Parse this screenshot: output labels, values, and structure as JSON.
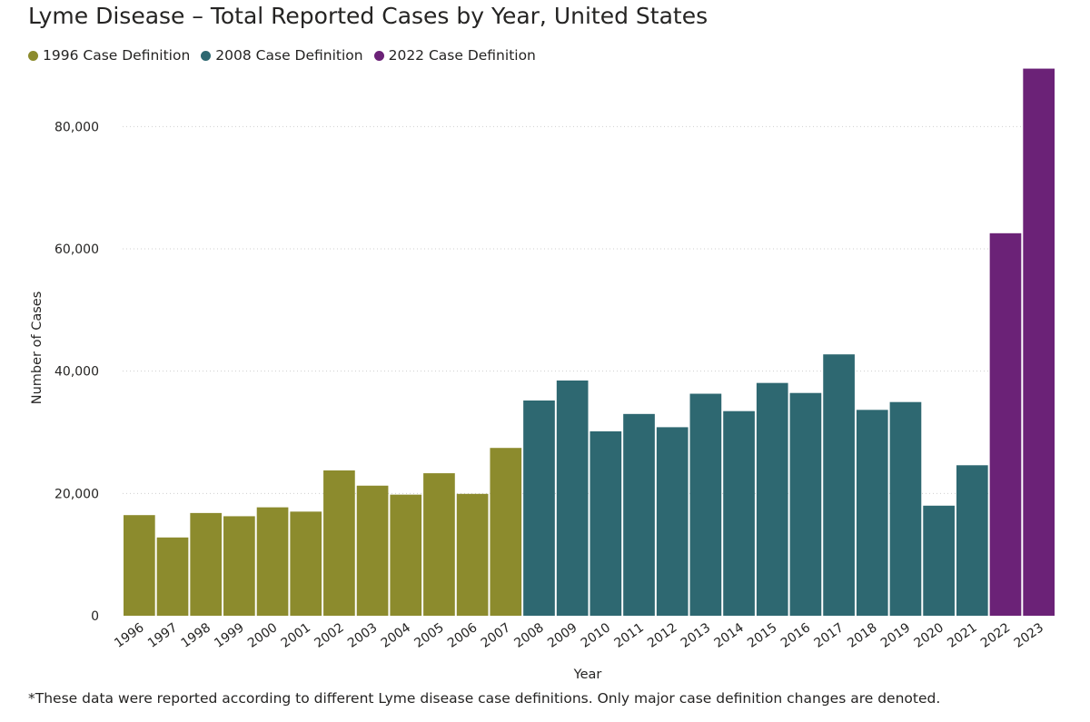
{
  "chart_data": {
    "type": "bar",
    "title": "Lyme Disease – Total Reported Cases by Year, United States",
    "xlabel": "Year",
    "ylabel": "Number of Cases",
    "ylim": [
      0,
      90000
    ],
    "yticks": [
      0,
      20000,
      40000,
      60000,
      80000
    ],
    "ytick_labels": [
      "0",
      "20,000",
      "40,000",
      "60,000",
      "80,000"
    ],
    "grid": "horizontal dotted",
    "legend_position": "top-left",
    "categories": [
      "1996",
      "1997",
      "1998",
      "1999",
      "2000",
      "2001",
      "2002",
      "2003",
      "2004",
      "2005",
      "2006",
      "2007",
      "2008",
      "2009",
      "2010",
      "2011",
      "2012",
      "2013",
      "2014",
      "2015",
      "2016",
      "2017",
      "2018",
      "2019",
      "2020",
      "2021",
      "2022",
      "2023"
    ],
    "values": [
      16455,
      12801,
      16801,
      16273,
      17730,
      17029,
      23763,
      21273,
      19804,
      23305,
      19931,
      27444,
      35198,
      38468,
      30158,
      32996,
      30831,
      36307,
      33461,
      38069,
      36429,
      42743,
      33666,
      34945,
      18000,
      24610,
      62551,
      89470
    ],
    "series_groups": [
      {
        "name": "1996 Case Definition",
        "color": "#8c8b2d",
        "from": "1996",
        "to": "2007"
      },
      {
        "name": "2008 Case Definition",
        "color": "#2e6871",
        "from": "2008",
        "to": "2021"
      },
      {
        "name": "2022 Case Definition",
        "color": "#6b2277",
        "from": "2022",
        "to": "2023"
      }
    ],
    "footnote": "*These data were reported according to different Lyme disease case definitions. Only major case definition changes are denoted."
  }
}
